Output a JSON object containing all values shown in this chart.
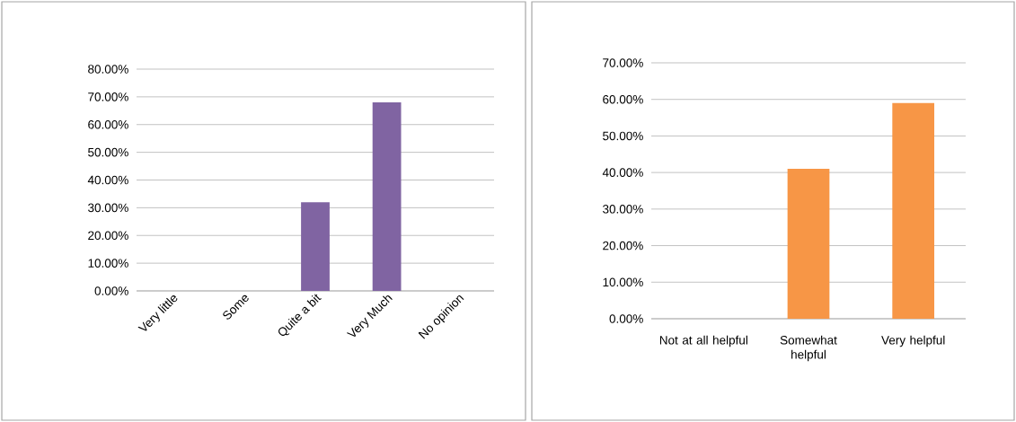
{
  "chart_data": [
    {
      "type": "bar",
      "categories": [
        "Very little",
        "Some",
        "Quite a bit",
        "Very Much",
        "No opinion"
      ],
      "values": [
        0,
        0,
        32,
        68,
        0
      ],
      "color": "#8064a2",
      "ylim": [
        0,
        80
      ],
      "yticks": [
        {
          "value": 0,
          "label": "0.00%"
        },
        {
          "value": 10,
          "label": "10.00%"
        },
        {
          "value": 20,
          "label": "20.00%"
        },
        {
          "value": 30,
          "label": "30.00%"
        },
        {
          "value": 40,
          "label": "40.00%"
        },
        {
          "value": 50,
          "label": "50.00%"
        },
        {
          "value": 60,
          "label": "60.00%"
        },
        {
          "value": 70,
          "label": "70.00%"
        },
        {
          "value": 80,
          "label": "80.00%"
        }
      ],
      "grid": "y"
    },
    {
      "type": "bar",
      "categories": [
        "Not at all helpful",
        "Somewhat helpful",
        "Very helpful"
      ],
      "values": [
        0,
        41,
        59
      ],
      "color": "#f79646",
      "ylim": [
        0,
        70
      ],
      "yticks": [
        {
          "value": 0,
          "label": "0.00%"
        },
        {
          "value": 10,
          "label": "10.00%"
        },
        {
          "value": 20,
          "label": "20.00%"
        },
        {
          "value": 30,
          "label": "30.00%"
        },
        {
          "value": 40,
          "label": "40.00%"
        },
        {
          "value": 50,
          "label": "50.00%"
        },
        {
          "value": 60,
          "label": "60.00%"
        },
        {
          "value": 70,
          "label": "70.00%"
        }
      ],
      "grid": "y"
    }
  ]
}
